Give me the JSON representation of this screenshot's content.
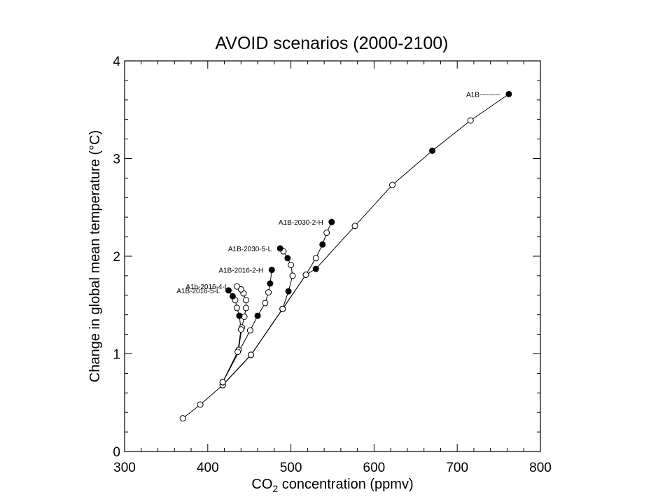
{
  "chart_data": {
    "type": "scatter",
    "title": "AVOID scenarios (2000-2100)",
    "xlabel_prefix": "CO",
    "xlabel_sub": "2",
    "xlabel_suffix": " concentration (ppmv)",
    "ylabel": "Change in global mean temperature (°C)",
    "xlim": [
      300,
      800
    ],
    "ylim": [
      0,
      4
    ],
    "xticks": [
      300,
      400,
      500,
      600,
      700,
      800
    ],
    "yticks": [
      0,
      1,
      2,
      3,
      4
    ],
    "grid": false,
    "series": [
      {
        "name": "A1B---------",
        "x": [
          370,
          391,
          418,
          452,
          490,
          518,
          530,
          577,
          622,
          670,
          716,
          762
        ],
        "y": [
          0.34,
          0.48,
          0.68,
          0.99,
          1.46,
          1.81,
          1.87,
          2.31,
          2.73,
          3.08,
          3.39,
          3.66
        ],
        "filled": [
          false,
          false,
          false,
          false,
          false,
          false,
          true,
          false,
          false,
          true,
          false,
          true
        ]
      },
      {
        "name": "A1B-2030-2-H",
        "x": [
          418,
          452,
          490,
          518,
          530,
          538,
          543,
          549
        ],
        "y": [
          0.68,
          0.99,
          1.46,
          1.81,
          1.98,
          2.12,
          2.24,
          2.35
        ],
        "filled": [
          false,
          false,
          false,
          false,
          false,
          true,
          false,
          true
        ]
      },
      {
        "name": "A1B-2030-5-L",
        "x": [
          418,
          452,
          490,
          497,
          502,
          500,
          496,
          491,
          487
        ],
        "y": [
          0.68,
          0.99,
          1.46,
          1.64,
          1.8,
          1.91,
          1.98,
          2.05,
          2.08
        ],
        "filled": [
          false,
          false,
          false,
          true,
          false,
          false,
          true,
          false,
          true
        ]
      },
      {
        "name": "A1B-2016-2-H",
        "x": [
          418,
          451,
          460,
          469,
          473,
          475,
          477
        ],
        "y": [
          0.71,
          1.24,
          1.39,
          1.52,
          1.63,
          1.72,
          1.86
        ],
        "filled": [
          false,
          false,
          true,
          false,
          false,
          true,
          true
        ]
      },
      {
        "name": "A1b-2016-4-L",
        "x": [
          418,
          437,
          441,
          444,
          446,
          446,
          443,
          440,
          435
        ],
        "y": [
          0.71,
          1.04,
          1.27,
          1.38,
          1.47,
          1.55,
          1.62,
          1.66,
          1.69
        ],
        "filled": [
          false,
          false,
          false,
          false,
          false,
          false,
          false,
          false,
          false
        ]
      },
      {
        "name": "A1B-2016-5-L",
        "x": [
          418,
          436,
          440,
          438,
          435,
          433,
          430,
          425
        ],
        "y": [
          0.71,
          1.02,
          1.25,
          1.39,
          1.47,
          1.55,
          1.59,
          1.65
        ],
        "filled": [
          false,
          false,
          false,
          true,
          false,
          false,
          true,
          true
        ]
      }
    ]
  }
}
